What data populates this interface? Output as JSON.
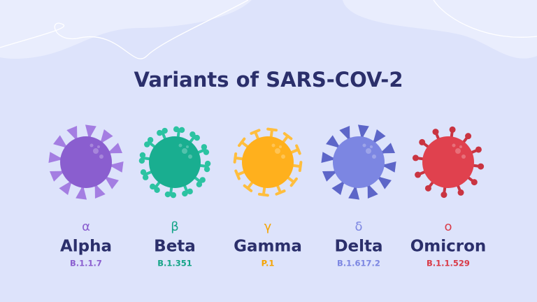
{
  "header": {
    "title": "Variants of SARS-COV-2"
  },
  "variants": [
    {
      "symbol": "α",
      "name": "Alpha",
      "lineage": "B.1.1.7"
    },
    {
      "symbol": "β",
      "name": "Beta",
      "lineage": "B.1.351"
    },
    {
      "symbol": "γ",
      "name": "Gamma",
      "lineage": "P.1"
    },
    {
      "symbol": "δ",
      "name": "Delta",
      "lineage": "B.1.617.2"
    },
    {
      "symbol": "ο",
      "name": "Omicron",
      "lineage": "B.1.1.529"
    }
  ]
}
